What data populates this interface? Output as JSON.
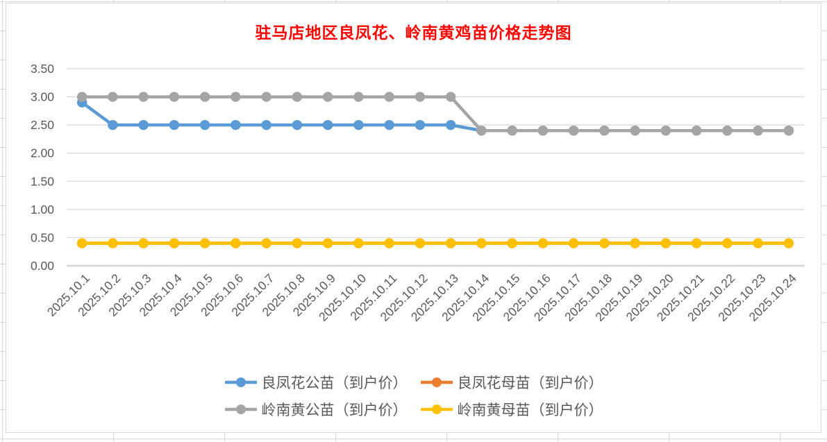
{
  "title": {
    "text": "驻马店地区良凤花、岭南黄鸡苗价格走势图",
    "color": "#FF0000"
  },
  "colors": {
    "gridline": "#D9D9D9",
    "axis_line": "#D6D6D6",
    "axis_text": "#595959",
    "legend_text": "#595959",
    "chart_border": "#D9D9D9",
    "background": "#FFFFFF"
  },
  "chart_data": {
    "type": "line",
    "title": "驻马店地区良凤花、岭南黄鸡苗价格走势图",
    "categories": [
      "2025.10.1",
      "2025.10.2",
      "2025.10.3",
      "2025.10.4",
      "2025.10.5",
      "2025.10.6",
      "2025.10.7",
      "2025.10.8",
      "2025.10.9",
      "2025.10.10",
      "2025.10.11",
      "2025.10.12",
      "2025.10.13",
      "2025.10.14",
      "2025.10.15",
      "2025.10.16",
      "2025.10.17",
      "2025.10.18",
      "2025.10.19",
      "2025.10.20",
      "2025.10.21",
      "2025.10.22",
      "2025.10.23",
      "2025.10.24"
    ],
    "series": [
      {
        "name": "良凤花公苗（到户价）",
        "color": "#5B9BD5",
        "values": [
          2.9,
          2.5,
          2.5,
          2.5,
          2.5,
          2.5,
          2.5,
          2.5,
          2.5,
          2.5,
          2.5,
          2.5,
          2.5,
          2.4,
          2.4,
          2.4,
          2.4,
          2.4,
          2.4,
          2.4,
          2.4,
          2.4,
          2.4,
          2.4
        ]
      },
      {
        "name": "良凤花母苗（到户价）",
        "color": "#ED7D31",
        "values": [
          0.4,
          0.4,
          0.4,
          0.4,
          0.4,
          0.4,
          0.4,
          0.4,
          0.4,
          0.4,
          0.4,
          0.4,
          0.4,
          0.4,
          0.4,
          0.4,
          0.4,
          0.4,
          0.4,
          0.4,
          0.4,
          0.4,
          0.4,
          0.4
        ]
      },
      {
        "name": "岭南黄公苗（到户价）",
        "color": "#A5A5A5",
        "values": [
          3.0,
          3.0,
          3.0,
          3.0,
          3.0,
          3.0,
          3.0,
          3.0,
          3.0,
          3.0,
          3.0,
          3.0,
          3.0,
          2.4,
          2.4,
          2.4,
          2.4,
          2.4,
          2.4,
          2.4,
          2.4,
          2.4,
          2.4,
          2.4
        ]
      },
      {
        "name": "岭南黄母苗（到户价）",
        "color": "#FFC000",
        "values": [
          0.4,
          0.4,
          0.4,
          0.4,
          0.4,
          0.4,
          0.4,
          0.4,
          0.4,
          0.4,
          0.4,
          0.4,
          0.4,
          0.4,
          0.4,
          0.4,
          0.4,
          0.4,
          0.4,
          0.4,
          0.4,
          0.4,
          0.4,
          0.4
        ]
      }
    ],
    "ylim": [
      0,
      3.5
    ],
    "ytick_step": 0.5,
    "ytick_labels": [
      "0.00",
      "0.50",
      "1.00",
      "1.50",
      "2.00",
      "2.50",
      "3.00",
      "3.50"
    ],
    "xlabel": "",
    "ylabel": "",
    "grid": true,
    "legend_position": "bottom",
    "legend_rows": [
      [
        0,
        1
      ],
      [
        2,
        3
      ]
    ]
  }
}
